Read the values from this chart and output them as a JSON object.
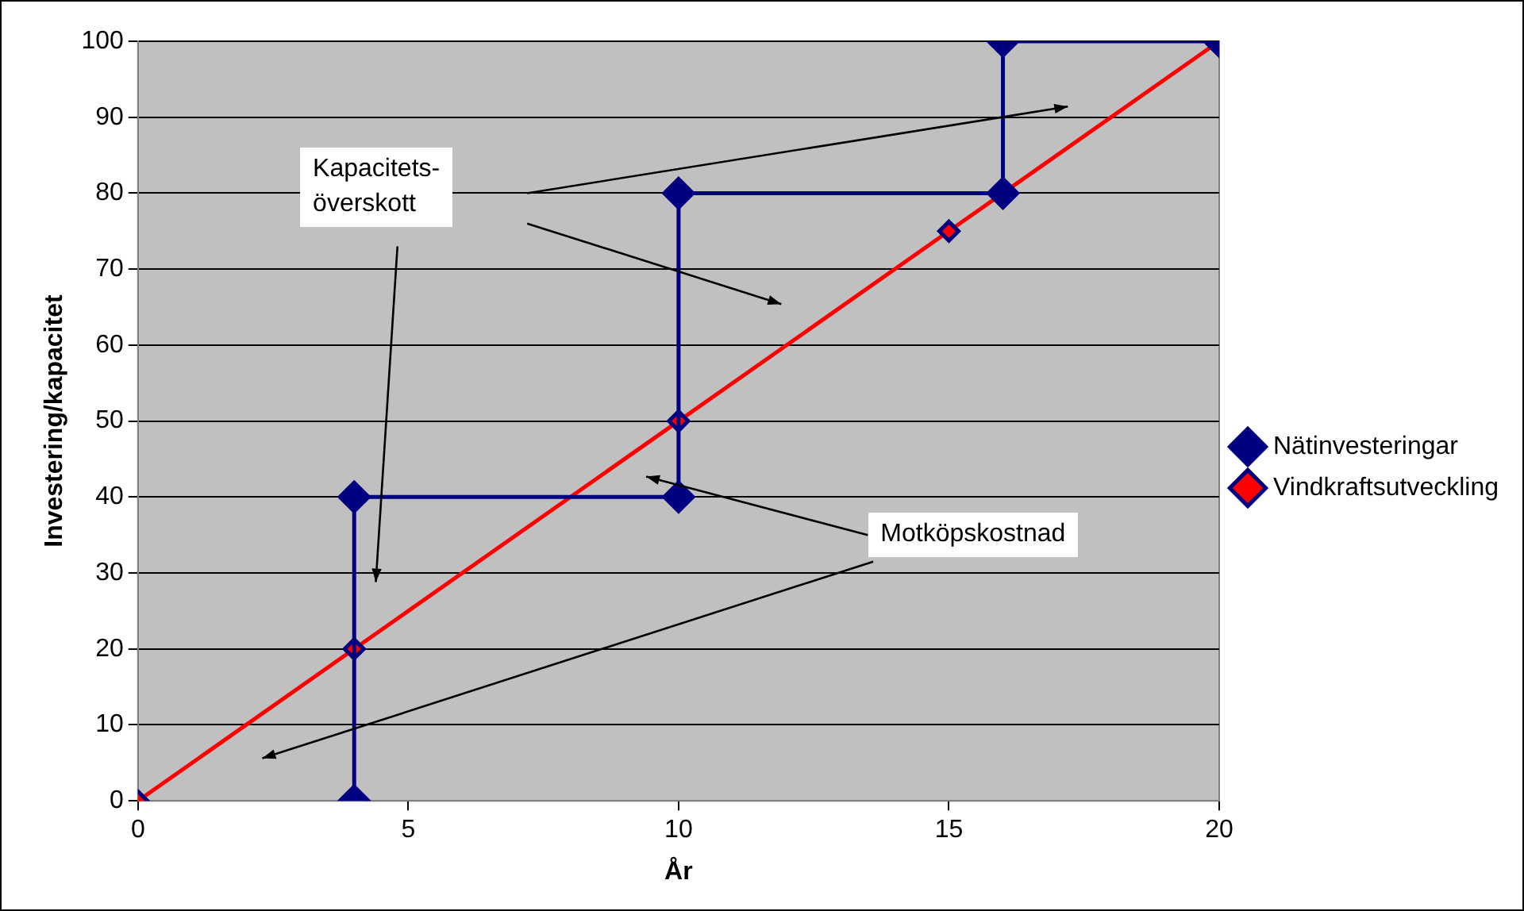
{
  "chart_data": {
    "type": "line",
    "xlabel": "År",
    "ylabel": "Investering/kapacitet",
    "xlim": [
      0,
      20
    ],
    "xticks": [
      0,
      5,
      10,
      15,
      20
    ],
    "ylim": [
      0,
      100
    ],
    "yticks": [
      0,
      10,
      20,
      30,
      40,
      50,
      60,
      70,
      80,
      90,
      100
    ],
    "grid": "y",
    "legend": "right",
    "marker": "diamond",
    "line_style": "solid",
    "series": [
      {
        "name": "Nätinvesteringar",
        "color": "#000080",
        "x": [
          4,
          4,
          10,
          10,
          16,
          16,
          20
        ],
        "values": [
          0,
          40,
          40,
          80,
          80,
          100,
          100
        ]
      },
      {
        "name": "Vindkraftsutveckling",
        "color": "#ff0000",
        "x": [
          0,
          4,
          10,
          15,
          20
        ],
        "values": [
          0,
          20,
          50,
          75,
          100
        ]
      }
    ],
    "annotations": [
      "Kapacitets-\növerskott",
      "Motköpskostnad"
    ]
  }
}
